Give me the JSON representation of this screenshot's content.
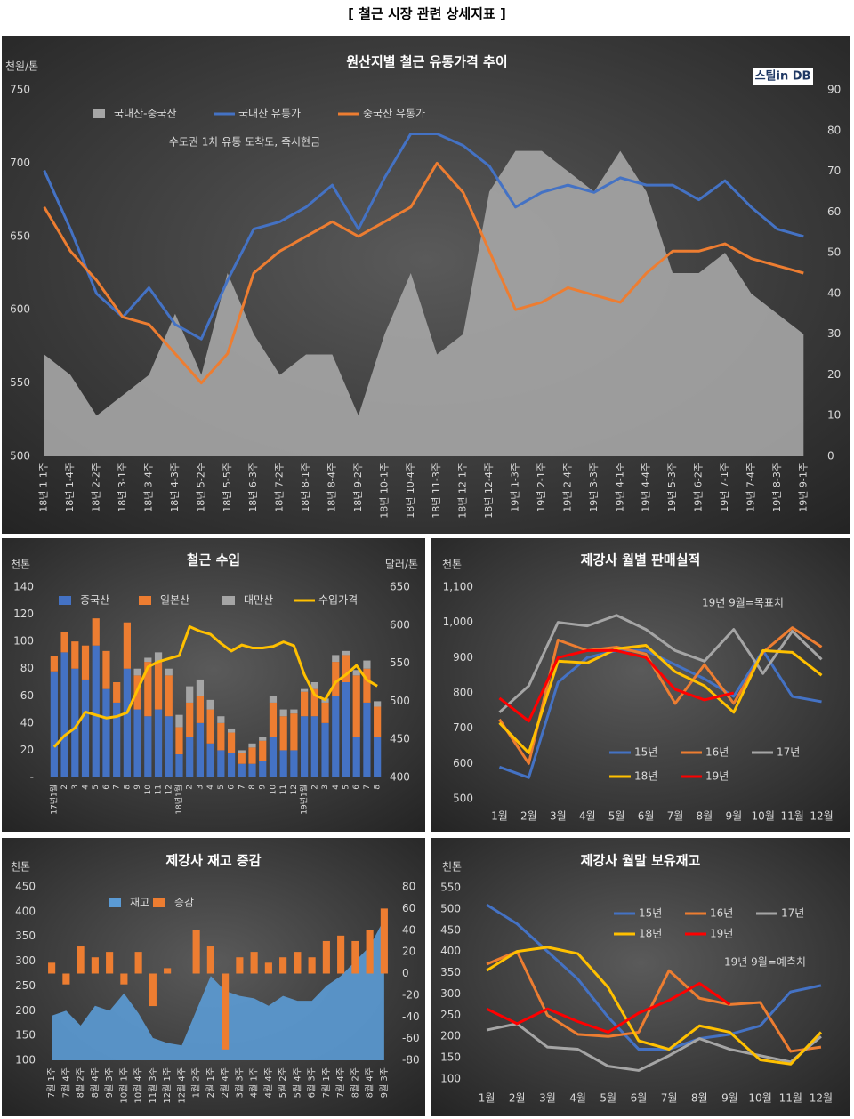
{
  "title": "[ 철근 시장 관련 상세지표 ]",
  "chart_data": [
    {
      "type": "line",
      "title": "원산지별 철근 유통가격 추이",
      "y_label": "천원/톤",
      "annotation": "수도권 1차 유통 도착도, 즉시현금",
      "logo": "스틸in DB",
      "categories": [
        "18년 1-1주",
        "18년 1-4주",
        "18년 2-2주",
        "18년 3-1주",
        "18년 3-4주",
        "18년 4-3주",
        "18년 5-2주",
        "18년 5-5주",
        "18년 6-3주",
        "18년 7-2주",
        "18년 8-1주",
        "18년 8-4주",
        "18년 9-2주",
        "18년 10-1주",
        "18년 10-4주",
        "18년 11-3주",
        "18년 12-1주",
        "18년 12-4주",
        "19년 1-3주",
        "19년 2-1주",
        "19년 2-4주",
        "19년 3-3주",
        "19년 4-1주",
        "19년 4-4주",
        "19년 5-3주",
        "19년 6-2주",
        "19년 7-1주",
        "19년 7-4주",
        "19년 8-3주",
        "19년 9-1주"
      ],
      "series": [
        {
          "name": "국내산-중국산",
          "type": "area",
          "axis": "y2",
          "color": "#a6a6a6",
          "values": [
            25,
            20,
            10,
            15,
            20,
            35,
            20,
            45,
            30,
            20,
            25,
            25,
            10,
            30,
            45,
            25,
            30,
            65,
            75,
            75,
            70,
            65,
            75,
            65,
            45,
            45,
            50,
            40,
            35,
            30
          ]
        },
        {
          "name": "국내산 유통가",
          "color": "#4472c4",
          "values": [
            695,
            655,
            611,
            595,
            615,
            590,
            580,
            620,
            655,
            660,
            670,
            685,
            655,
            690,
            720,
            720,
            712,
            698,
            670,
            680,
            685,
            680,
            690,
            685,
            685,
            675,
            688,
            670,
            655,
            650
          ]
        },
        {
          "name": "중국산 유통가",
          "color": "#ed7d31",
          "values": [
            670,
            640,
            620,
            595,
            590,
            570,
            550,
            570,
            625,
            640,
            650,
            660,
            650,
            660,
            670,
            700,
            680,
            640,
            600,
            605,
            615,
            610,
            605,
            625,
            640,
            640,
            645,
            635,
            630,
            625
          ]
        }
      ],
      "ylim": [
        500,
        750
      ],
      "yticks": [
        500,
        550,
        600,
        650,
        700,
        750
      ],
      "y2lim": [
        0,
        90
      ],
      "y2ticks": [
        0,
        10,
        20,
        30,
        40,
        50,
        60,
        70,
        80,
        90
      ]
    },
    {
      "type": "bar",
      "title": "철근 수입",
      "y_label": "천톤",
      "y2_label": "달러/톤",
      "stacked": true,
      "categories": [
        "17년1월",
        "2",
        "3",
        "4",
        "5",
        "6",
        "7",
        "8",
        "9",
        "10",
        "11",
        "12",
        "18년1월",
        "2",
        "3",
        "4",
        "5",
        "6",
        "7",
        "8",
        "9",
        "10",
        "11",
        "12",
        "19년1월",
        "2",
        "3",
        "4",
        "5",
        "6",
        "7",
        "8"
      ],
      "series": [
        {
          "name": "중국산",
          "color": "#4472c4",
          "values": [
            78,
            92,
            80,
            72,
            97,
            65,
            55,
            80,
            50,
            45,
            50,
            45,
            17,
            30,
            40,
            25,
            20,
            18,
            10,
            10,
            12,
            30,
            20,
            20,
            45,
            45,
            40,
            60,
            70,
            30,
            55,
            30
          ]
        },
        {
          "name": "일본산",
          "color": "#ed7d31",
          "values": [
            11,
            15,
            20,
            25,
            20,
            28,
            15,
            34,
            25,
            40,
            35,
            30,
            20,
            25,
            20,
            25,
            20,
            15,
            8,
            12,
            15,
            25,
            25,
            27,
            18,
            20,
            15,
            25,
            20,
            45,
            25,
            22
          ]
        },
        {
          "name": "대만산",
          "color": "#a5a5a5",
          "values": [
            0,
            0,
            0,
            0,
            0,
            0,
            0,
            0,
            5,
            3,
            7,
            5,
            9,
            12,
            12,
            7,
            5,
            3,
            2,
            3,
            3,
            5,
            5,
            3,
            2,
            5,
            3,
            5,
            3,
            4,
            6,
            4
          ]
        },
        {
          "name": "수입가격",
          "type": "line",
          "axis": "y2",
          "color": "#ffc000",
          "values": [
            440,
            455,
            465,
            486,
            482,
            478,
            480,
            485,
            515,
            545,
            552,
            556,
            560,
            598,
            592,
            588,
            576,
            566,
            574,
            570,
            570,
            572,
            578,
            573,
            535,
            508,
            502,
            525,
            535,
            547,
            528,
            520
          ]
        }
      ],
      "ylim": [
        0,
        140
      ],
      "yticks": [
        {
          "value": 0,
          "label": "-"
        },
        20,
        40,
        60,
        80,
        100,
        120,
        140
      ],
      "y2lim": [
        400,
        650
      ],
      "y2ticks": [
        400,
        450,
        500,
        550,
        600,
        650
      ]
    },
    {
      "type": "line",
      "title": "제강사 월별 판매실적",
      "y_label": "천톤",
      "annotation": "19년 9월=목표치",
      "categories": [
        "1월",
        "2월",
        "3월",
        "4월",
        "5월",
        "6월",
        "7월",
        "8월",
        "9월",
        "10월",
        "11월",
        "12월"
      ],
      "series": [
        {
          "name": "15년",
          "color": "#4472c4",
          "values": [
            590,
            560,
            830,
            900,
            920,
            920,
            880,
            840,
            790,
            920,
            790,
            775
          ]
        },
        {
          "name": "16년",
          "color": "#ed7d31",
          "values": [
            725,
            600,
            950,
            920,
            930,
            910,
            770,
            880,
            770,
            915,
            985,
            930
          ]
        },
        {
          "name": "17년",
          "color": "#a5a5a5",
          "values": [
            745,
            820,
            1000,
            990,
            1020,
            980,
            920,
            890,
            980,
            855,
            975,
            895
          ]
        },
        {
          "name": "18년",
          "color": "#ffc000",
          "values": [
            715,
            630,
            890,
            885,
            925,
            935,
            860,
            820,
            745,
            920,
            915,
            850
          ]
        },
        {
          "name": "19년",
          "color": "#ff0000",
          "values": [
            785,
            720,
            900,
            920,
            920,
            900,
            810,
            780,
            800,
            null,
            null,
            null
          ]
        }
      ],
      "ylim": [
        500,
        1100
      ],
      "yticks": [
        500,
        600,
        700,
        800,
        900,
        {
          "value": 1000,
          "label": "1,000"
        },
        {
          "value": 1100,
          "label": "1,100"
        }
      ]
    },
    {
      "type": "area",
      "title": "제강사 재고 증감",
      "y_label": "천톤",
      "categories": [
        "7월 1주",
        "7월 4주",
        "8월 2주",
        "8월 4주",
        "9월 3주",
        "10월 1주",
        "10월 4주",
        "11월 3주",
        "12월 1주",
        "12월 4주",
        "1월 2주",
        "2월 1주",
        "2월 4주",
        "3월 3주",
        "4월 1주",
        "4월 4주",
        "5월 2주",
        "5월 4주",
        "6월 3주",
        "7월 1주",
        "7월 4주",
        "8월 2주",
        "8월 4주",
        "9월 3주"
      ],
      "series": [
        {
          "name": "재고",
          "type": "area",
          "color": "#5b9bd5",
          "values": [
            190,
            200,
            170,
            210,
            200,
            235,
            195,
            145,
            135,
            130,
            200,
            270,
            240,
            230,
            225,
            210,
            230,
            220,
            220,
            250,
            270,
            300,
            330,
            385
          ]
        },
        {
          "name": "증감",
          "type": "bar",
          "axis": "y2",
          "color": "#ed7d31",
          "values": [
            10,
            -10,
            25,
            15,
            20,
            -10,
            20,
            -30,
            5,
            0,
            40,
            25,
            -70,
            15,
            20,
            10,
            15,
            20,
            15,
            30,
            35,
            30,
            40,
            60
          ]
        }
      ],
      "ylim": [
        100,
        450
      ],
      "yticks": [
        100,
        150,
        200,
        250,
        300,
        350,
        400,
        450
      ],
      "y2lim": [
        -80,
        80
      ],
      "y2ticks": [
        -80,
        -60,
        -40,
        -20,
        0,
        20,
        40,
        60,
        80
      ]
    },
    {
      "type": "line",
      "title": "제강사 월말 보유재고",
      "y_label": "천톤",
      "annotation": "19년 9월=예측치",
      "categories": [
        "1월",
        "2월",
        "3월",
        "4월",
        "5월",
        "6월",
        "7월",
        "8월",
        "9월",
        "10월",
        "11월",
        "12월"
      ],
      "series": [
        {
          "name": "15년",
          "color": "#4472c4",
          "values": [
            510,
            465,
            400,
            335,
            245,
            170,
            170,
            195,
            205,
            225,
            305,
            320
          ]
        },
        {
          "name": "16년",
          "color": "#ed7d31",
          "values": [
            370,
            400,
            250,
            205,
            200,
            210,
            355,
            290,
            275,
            280,
            165,
            175
          ]
        },
        {
          "name": "17년",
          "color": "#a5a5a5",
          "values": [
            215,
            230,
            175,
            170,
            130,
            120,
            155,
            195,
            170,
            155,
            140,
            200
          ]
        },
        {
          "name": "18년",
          "color": "#ffc000",
          "values": [
            355,
            400,
            410,
            395,
            315,
            190,
            170,
            225,
            210,
            145,
            135,
            210
          ]
        },
        {
          "name": "19년",
          "color": "#ff0000",
          "values": [
            265,
            230,
            265,
            235,
            210,
            255,
            285,
            325,
            275,
            null,
            null,
            null
          ]
        }
      ],
      "ylim": [
        100,
        550
      ],
      "yticks": [
        100,
        150,
        200,
        250,
        300,
        350,
        400,
        450,
        500,
        550
      ]
    }
  ]
}
